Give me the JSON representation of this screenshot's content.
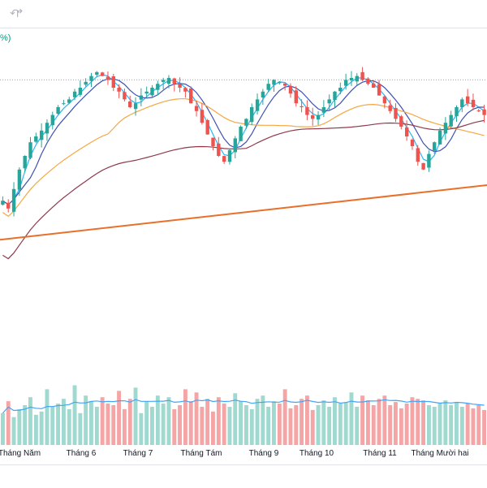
{
  "toolbar": {
    "icons": [
      "undo-icon",
      "redo-icon"
    ]
  },
  "legend": {
    "fragment": "%)"
  },
  "colors": {
    "up": "#26a69a",
    "down": "#ef5350",
    "vol_up": "#9fd9cf",
    "vol_down": "#f5a5a5",
    "ma_cyan": "#29b6f6",
    "ma_blue": "#3f51b5",
    "ma_orange": "#f5a742",
    "ma_maroon": "#8e3a4a",
    "trendline": "#e8702a",
    "vol_ma": "#42a5f5",
    "ref_line": "#9aa0a6"
  },
  "chart_data": {
    "type": "candlestick",
    "title": "",
    "x_axis": {
      "tick_labels": [
        "Tháng Năm",
        "Tháng 6",
        "Tháng 7",
        "Tháng Tám",
        "Tháng 9",
        "Tháng 10",
        "Tháng 11",
        "Tháng Mười hai"
      ]
    },
    "price_range": [
      0,
      100
    ],
    "closes": [
      22,
      18,
      28,
      38,
      45,
      52,
      55,
      58,
      62,
      66,
      70,
      72,
      74,
      78,
      80,
      83,
      86,
      88,
      86,
      84,
      80,
      78,
      74,
      70,
      72,
      76,
      78,
      80,
      82,
      84,
      85,
      82,
      80,
      78,
      72,
      68,
      62,
      56,
      50,
      45,
      42,
      48,
      54,
      60,
      64,
      70,
      74,
      78,
      82,
      84,
      83,
      81,
      77,
      72,
      70,
      66,
      64,
      66,
      70,
      74,
      78,
      80,
      84,
      85,
      86,
      84,
      82,
      80,
      76,
      72,
      68,
      64,
      60,
      55,
      50,
      42,
      38,
      46,
      52,
      58,
      62,
      66,
      70,
      74,
      72,
      70,
      68,
      66
    ],
    "moving_averages": [
      {
        "period": "short",
        "color_key": "ma_cyan"
      },
      {
        "period": "medium",
        "color_key": "ma_blue"
      },
      {
        "period": "long",
        "color_key": "ma_orange"
      },
      {
        "period": "very-long",
        "color_key": "ma_maroon"
      }
    ],
    "reference_level": 84,
    "trendline": {
      "start": 2,
      "end": 30
    },
    "volume_range": [
      0,
      100
    ],
    "volumes": [
      40,
      55,
      35,
      45,
      50,
      60,
      38,
      42,
      70,
      48,
      52,
      58,
      45,
      75,
      40,
      62,
      55,
      48,
      60,
      52,
      50,
      68,
      45,
      58,
      72,
      40,
      55,
      48,
      62,
      52,
      60,
      45,
      50,
      70,
      55,
      66,
      48,
      58,
      42,
      60,
      52,
      48,
      65,
      55,
      50,
      45,
      58,
      62,
      48,
      55,
      52,
      70,
      46,
      50,
      58,
      62,
      44,
      50,
      56,
      48,
      60,
      52,
      54,
      66,
      48,
      62,
      56,
      50,
      58,
      62,
      50,
      54,
      46,
      52,
      60,
      58,
      56,
      50,
      48,
      52,
      56,
      50,
      54,
      48,
      52,
      46,
      50,
      44
    ],
    "volume_ma_color_key": "vol_ma",
    "grid": false,
    "legend": "none"
  }
}
